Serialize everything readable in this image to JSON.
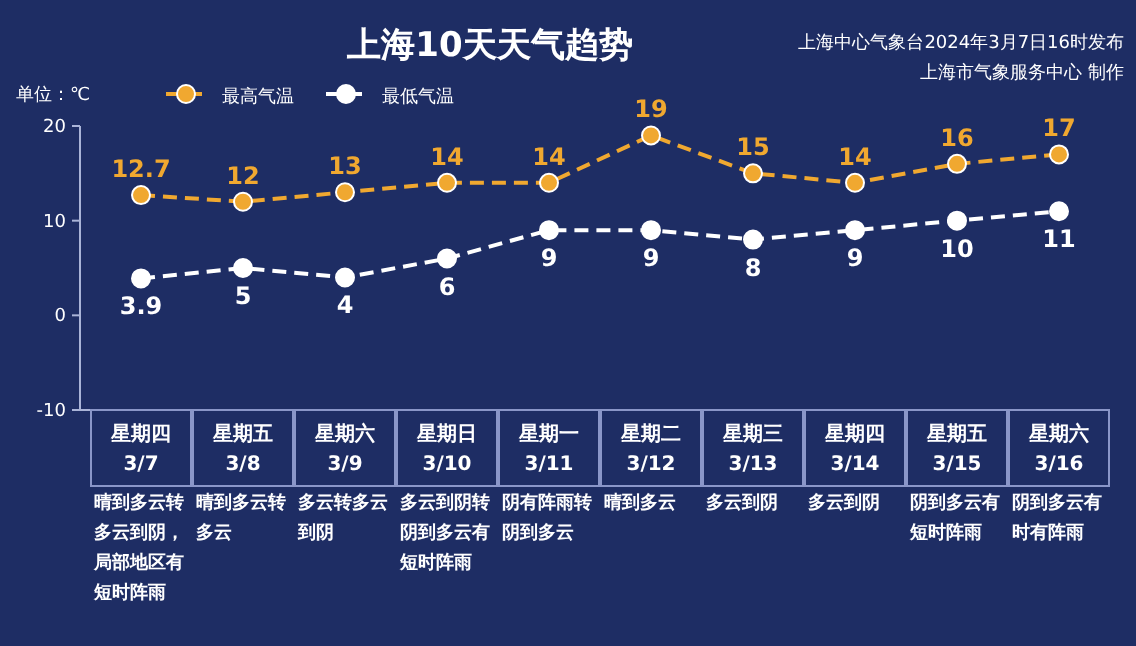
{
  "chart_data": {
    "type": "line",
    "title": "上海10天天气趋势",
    "ylabel": "单位：℃",
    "annotations": [
      "上海中心气象台2024年3月7日16时发布",
      "上海市气象服务中心 制作",
      "晴到多云转多云到阴，局部地区有短时阵雨",
      "晴到多云转多云",
      "多云转多云到阴",
      "多云到阴转阴到多云有短时阵雨",
      "阴有阵雨转阴到多云",
      "晴到多云",
      "多云到阴",
      "多云到阴",
      "阴到多云有短时阵雨",
      "阴到多云有时有阵雨"
    ],
    "categories": [
      "星期四 3/7",
      "星期五 3/8",
      "星期六 3/9",
      "星期日 3/10",
      "星期一 3/11",
      "星期二 3/12",
      "星期三 3/13",
      "星期四 3/14",
      "星期五 3/15",
      "星期六 3/16"
    ],
    "series": [
      {
        "name": "最高气温",
        "color": "#f0a830",
        "values": [
          12.7,
          12,
          13,
          14,
          14,
          19,
          15,
          14,
          16,
          17
        ]
      },
      {
        "name": "最低气温",
        "color": "#ffffff",
        "values": [
          3.9,
          5,
          4,
          6,
          9,
          9,
          8,
          9,
          10,
          11
        ]
      }
    ],
    "ylim": [
      -10,
      20
    ],
    "yticks": [
      -10,
      0,
      10,
      20
    ],
    "grid": false,
    "legend": "top left",
    "marker": "circle",
    "line_style": "dashed",
    "data_labels": true
  }
}
